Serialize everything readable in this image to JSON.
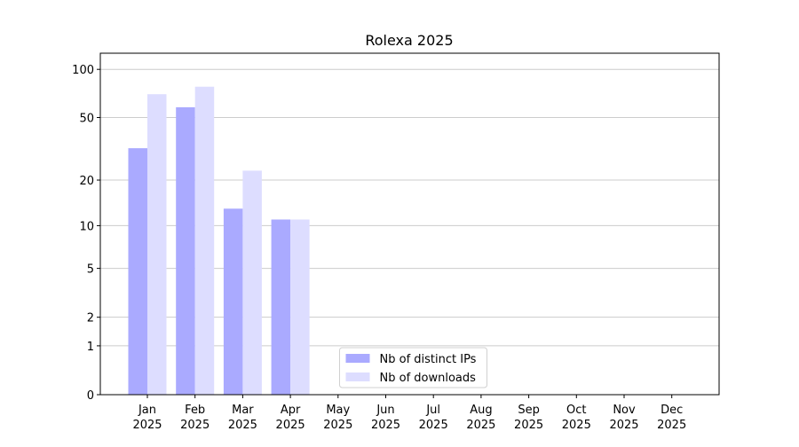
{
  "chart_data": {
    "type": "bar",
    "title": "Rolexa 2025",
    "scale": "log1p",
    "categories": [
      "Jan\n2025",
      "Feb\n2025",
      "Mar\n2025",
      "Apr\n2025",
      "May\n2025",
      "Jun\n2025",
      "Jul\n2025",
      "Aug\n2025",
      "Sep\n2025",
      "Oct\n2025",
      "Nov\n2025",
      "Dec\n2025"
    ],
    "series": [
      {
        "name": "Nb of distinct IPs",
        "color": "#aaaaff",
        "values": [
          32,
          58,
          13,
          11,
          null,
          null,
          null,
          null,
          null,
          null,
          null,
          null
        ]
      },
      {
        "name": "Nb of downloads",
        "color": "#ddddff",
        "values": [
          70,
          78,
          23,
          11,
          null,
          null,
          null,
          null,
          null,
          null,
          null,
          null
        ]
      }
    ],
    "ylim": [
      0,
      126
    ],
    "yticks": [
      0,
      1,
      2,
      5,
      10,
      20,
      50,
      100
    ],
    "grid": true,
    "legend": "lower center"
  }
}
